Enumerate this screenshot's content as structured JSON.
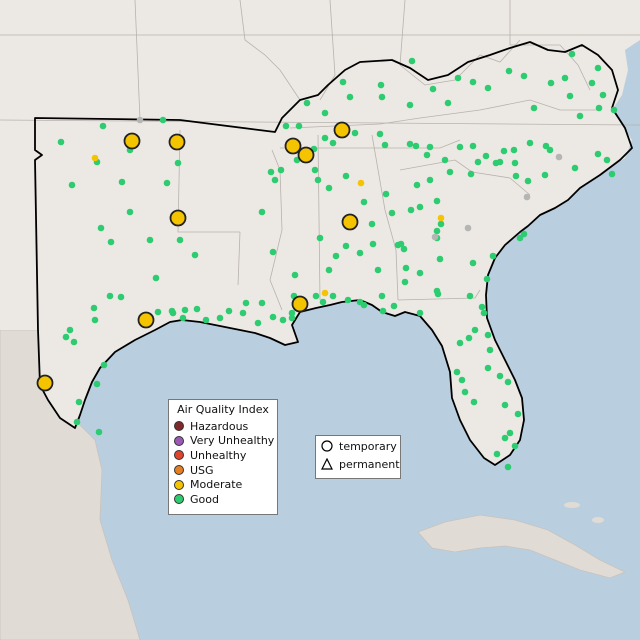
{
  "map": {
    "colors": {
      "water": "#b9cfe0",
      "land": "#ece8e3",
      "mexico_land": "#e0dbd5",
      "border": "#b8b2ad",
      "region_outline": "#000000",
      "station_good": "#2ecc71",
      "station_moderate": "#f5c400",
      "station_nodata": "#b5b5b5"
    }
  },
  "legend": {
    "title": "Air Quality Index",
    "items": [
      {
        "label": "Hazardous",
        "color": "#7e2a2a"
      },
      {
        "label": "Very Unhealthy",
        "color": "#9b59b6"
      },
      {
        "label": "Unhealthy",
        "color": "#e0442c"
      },
      {
        "label": "USG",
        "color": "#e67e22"
      },
      {
        "label": "Moderate",
        "color": "#f5c400"
      },
      {
        "label": "Good",
        "color": "#2ecc71"
      }
    ],
    "shapes": [
      {
        "label": "temporary",
        "icon": "circle-icon"
      },
      {
        "label": "permanent",
        "icon": "triangle-icon"
      }
    ]
  }
}
